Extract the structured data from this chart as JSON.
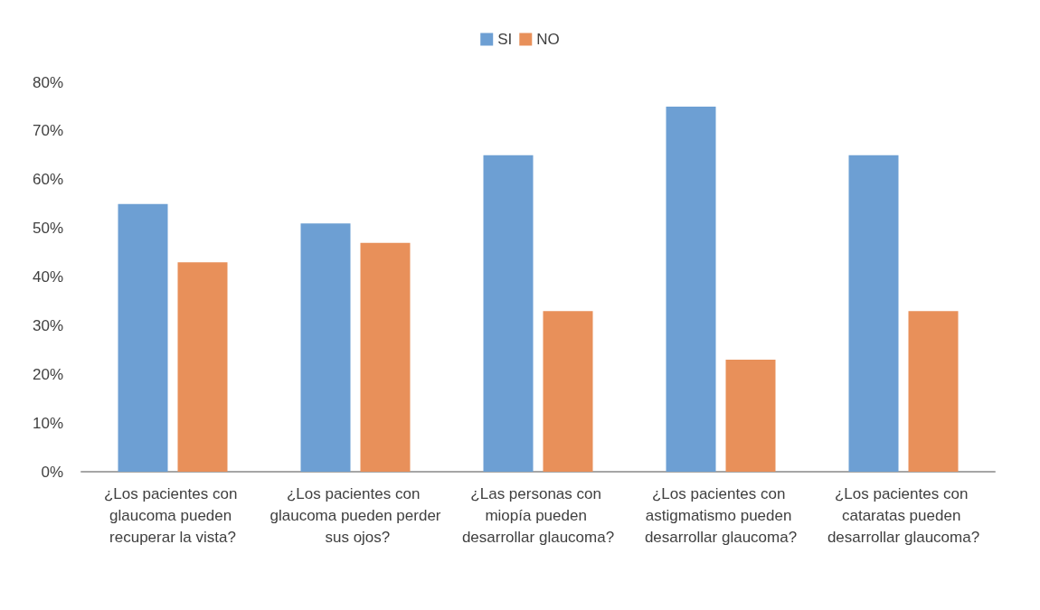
{
  "chart_data": {
    "type": "bar",
    "categories": [
      "¿Los pacientes con glaucoma pueden recuperar la vista?",
      "¿Los pacientes con glaucoma pueden perder sus ojos?",
      "¿Las personas con miopía pueden desarrollar glaucoma?",
      "¿Los pacientes con astigmatismo pueden desarrollar glaucoma?",
      "¿Los pacientes con cataratas pueden desarrollar glaucoma?"
    ],
    "series": [
      {
        "name": "SI",
        "color": "#6d9fd3",
        "values": [
          55,
          51,
          65,
          75,
          65
        ]
      },
      {
        "name": "NO",
        "color": "#e8905a",
        "values": [
          43,
          47,
          33,
          23,
          33
        ]
      }
    ],
    "ylim": [
      0,
      80
    ],
    "yticks": [
      {
        "value": 0,
        "label": "0%"
      },
      {
        "value": 10,
        "label": "10%"
      },
      {
        "value": 20,
        "label": "20%"
      },
      {
        "value": 30,
        "label": "30%"
      },
      {
        "value": 40,
        "label": "40%"
      },
      {
        "value": 50,
        "label": "50%"
      },
      {
        "value": 60,
        "label": "60%"
      },
      {
        "value": 70,
        "label": "70%"
      },
      {
        "value": 80,
        "label": "80%"
      }
    ],
    "grid": false,
    "legend": "top"
  }
}
